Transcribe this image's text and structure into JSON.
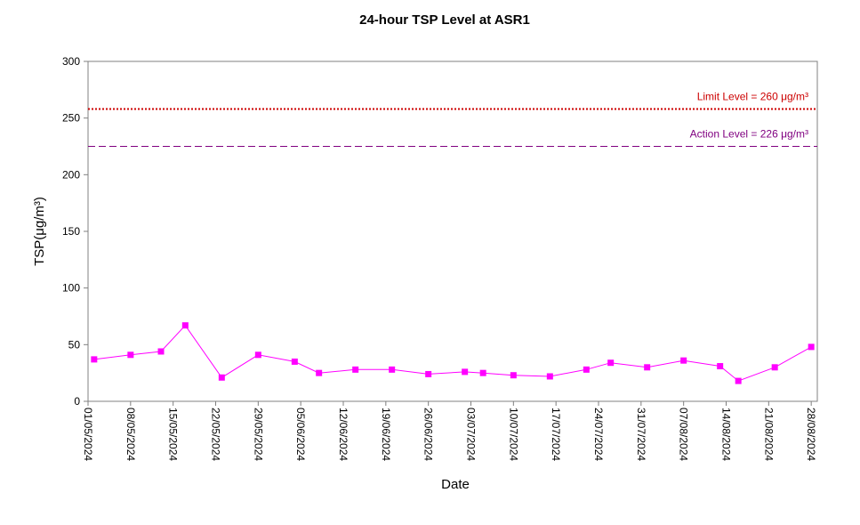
{
  "chart_data": {
    "type": "line",
    "title": "24-hour TSP Level at ASR1",
    "xlabel": "Date",
    "ylabel": "TSP(μg/m³)",
    "ylim": [
      0,
      300
    ],
    "yticks": [
      "0",
      "50",
      "100",
      "150",
      "200",
      "250",
      "300"
    ],
    "xrange": [
      "01/05/2024",
      "29/08/2024"
    ],
    "xticks": [
      "01/05/2024",
      "08/05/2024",
      "15/05/2024",
      "22/05/2024",
      "29/05/2024",
      "05/06/2024",
      "12/06/2024",
      "19/06/2024",
      "26/06/2024",
      "03/07/2024",
      "10/07/2024",
      "17/07/2024",
      "24/07/2024",
      "31/07/2024",
      "07/08/2024",
      "14/08/2024",
      "21/08/2024",
      "28/08/2024"
    ],
    "series": [
      {
        "color": "#ff00ff",
        "marker": "square",
        "points": [
          {
            "x": "02/05/2024",
            "y": 37
          },
          {
            "x": "08/05/2024",
            "y": 41
          },
          {
            "x": "13/05/2024",
            "y": 44
          },
          {
            "x": "17/05/2024",
            "y": 67
          },
          {
            "x": "23/05/2024",
            "y": 21
          },
          {
            "x": "29/05/2024",
            "y": 41
          },
          {
            "x": "04/06/2024",
            "y": 35
          },
          {
            "x": "08/06/2024",
            "y": 25
          },
          {
            "x": "14/06/2024",
            "y": 28
          },
          {
            "x": "20/06/2024",
            "y": 28
          },
          {
            "x": "26/06/2024",
            "y": 24
          },
          {
            "x": "02/07/2024",
            "y": 26
          },
          {
            "x": "05/07/2024",
            "y": 25
          },
          {
            "x": "10/07/2024",
            "y": 23
          },
          {
            "x": "16/07/2024",
            "y": 22
          },
          {
            "x": "22/07/2024",
            "y": 28
          },
          {
            "x": "26/07/2024",
            "y": 34
          },
          {
            "x": "01/08/2024",
            "y": 30
          },
          {
            "x": "07/08/2024",
            "y": 36
          },
          {
            "x": "13/08/2024",
            "y": 31
          },
          {
            "x": "16/08/2024",
            "y": 18
          },
          {
            "x": "22/08/2024",
            "y": 30
          },
          {
            "x": "28/08/2024",
            "y": 48
          }
        ]
      }
    ],
    "reference_lines": [
      {
        "label": "Limit Level  = 260 μg/m³",
        "y": 258,
        "color": "#cc0000",
        "style": "dotted"
      },
      {
        "label": "Action Level  = 226 μg/m³",
        "y": 225,
        "color": "#800080",
        "style": "dashed"
      }
    ],
    "grid": false,
    "legend": "none"
  }
}
